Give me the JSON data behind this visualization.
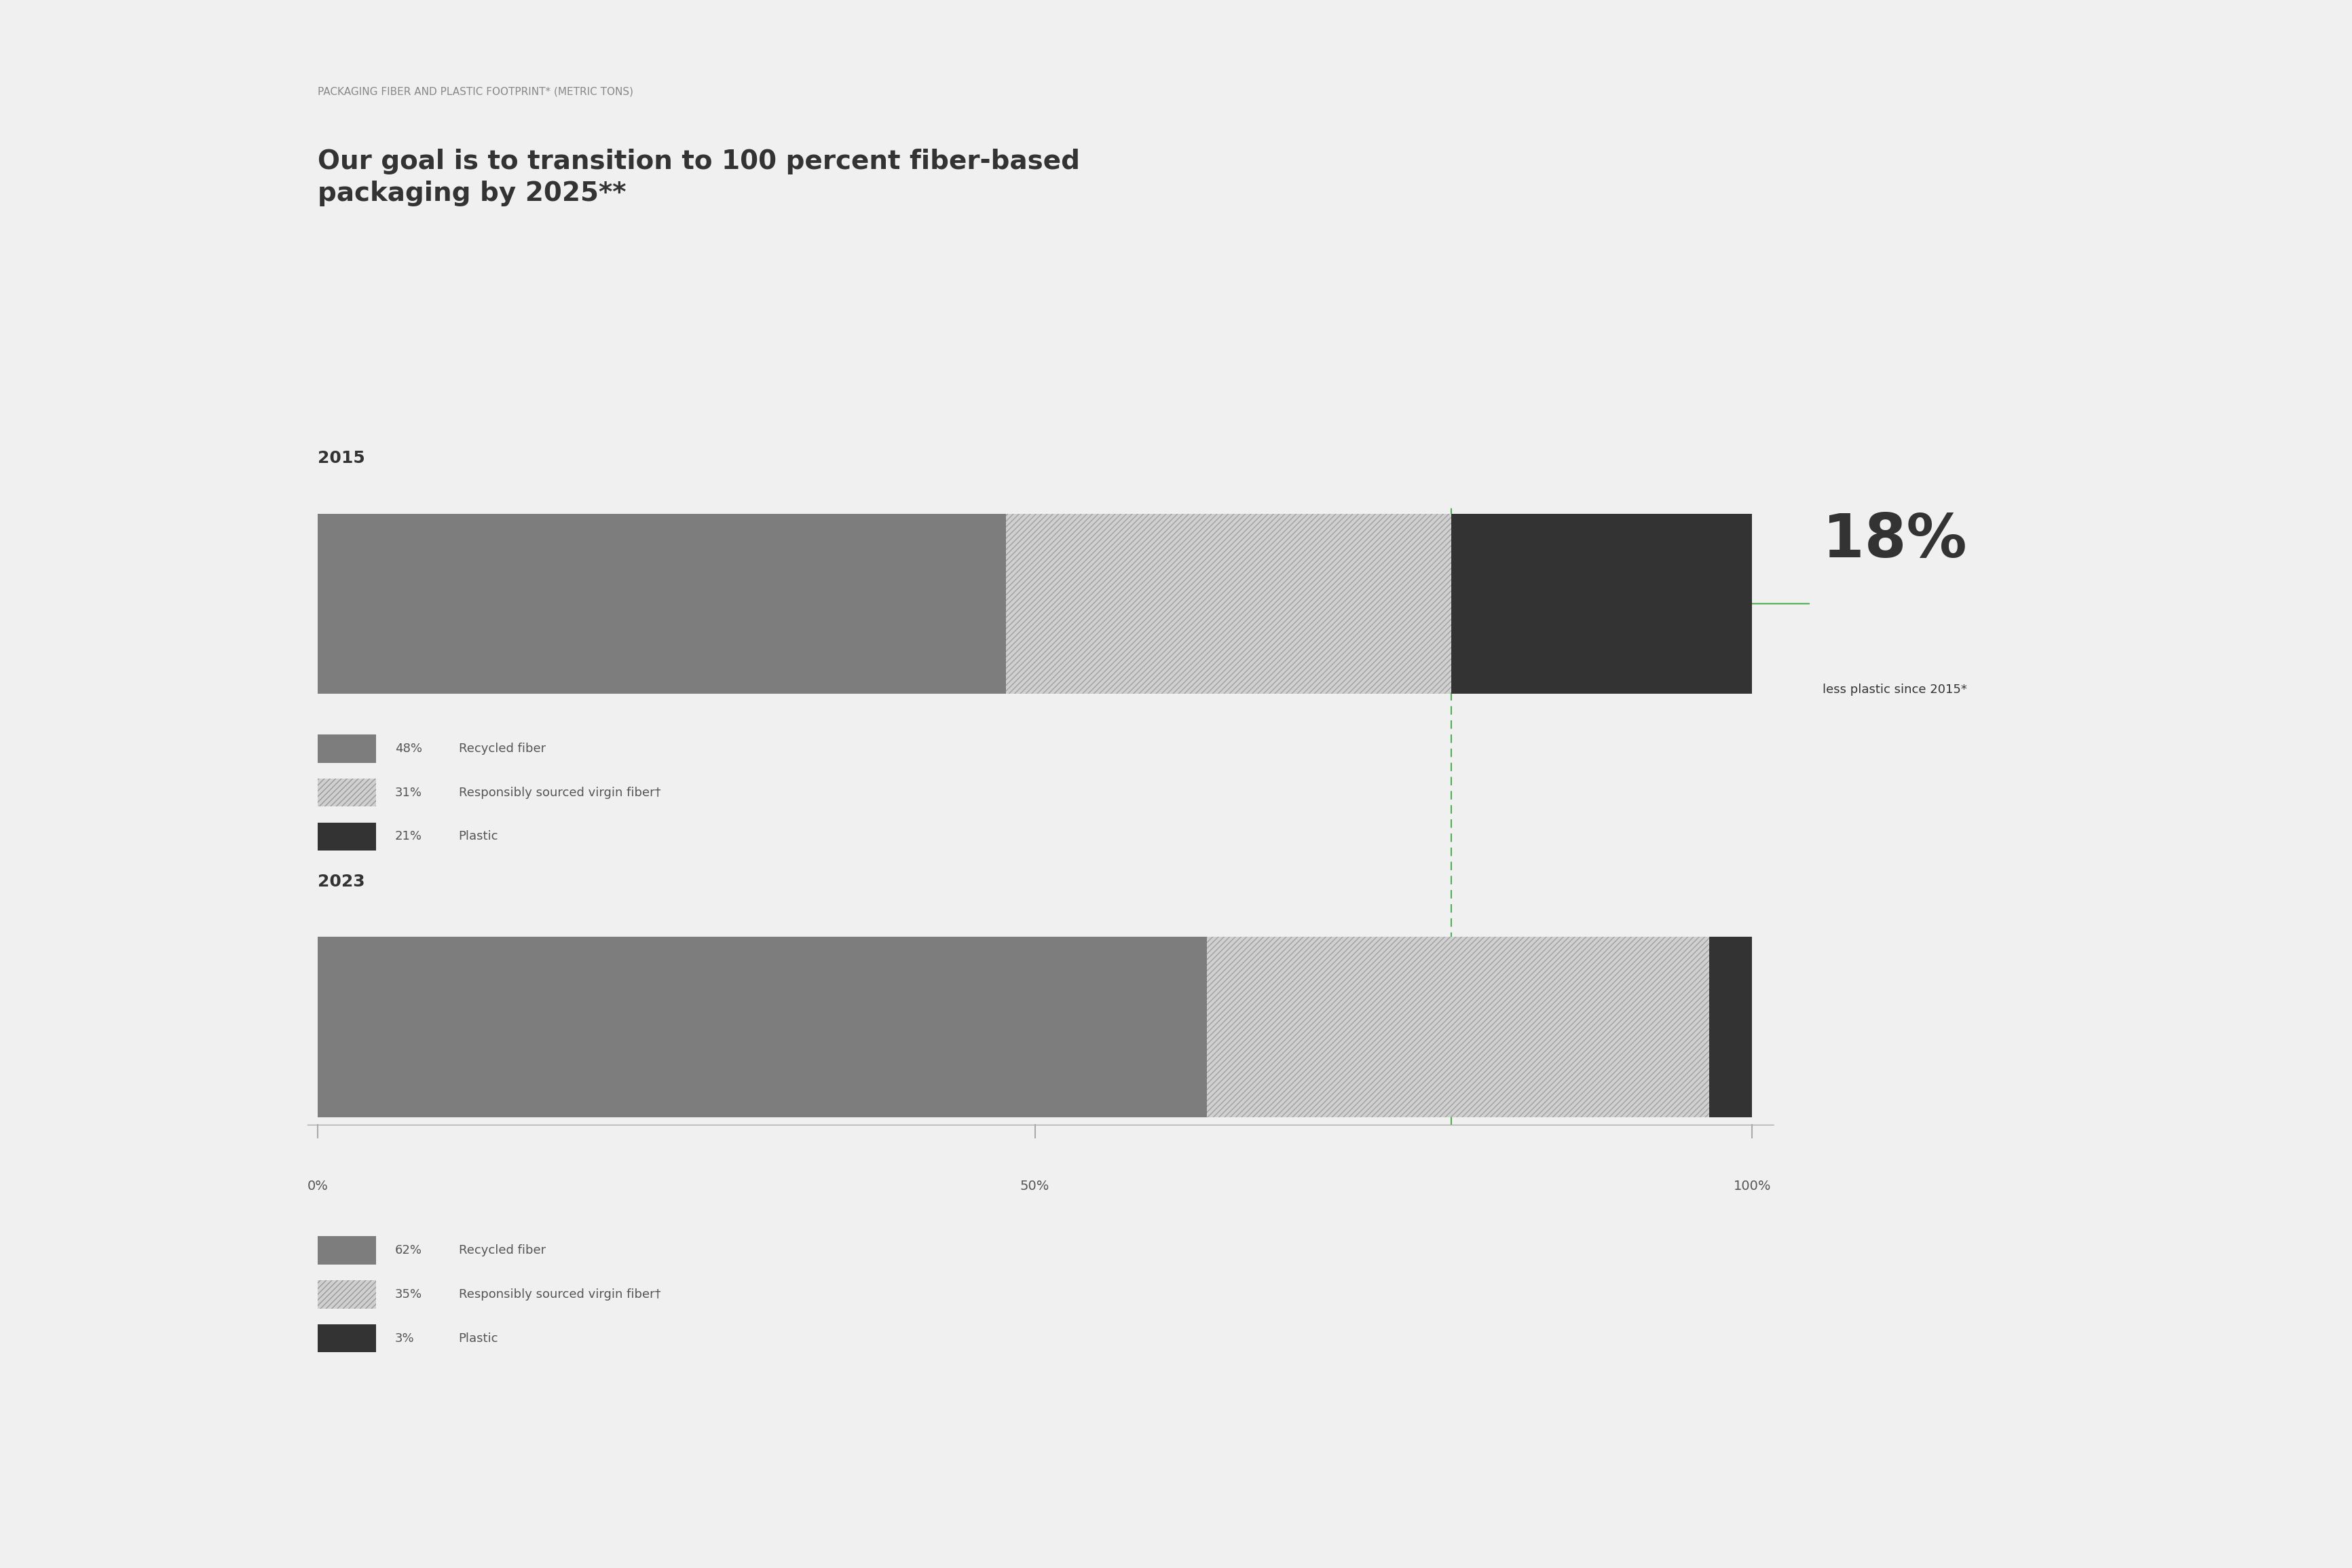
{
  "background_color": "#f0f0f0",
  "supertitle": "PACKAGING FIBER AND PLASTIC FOOTPRINT* (METRIC TONS)",
  "title_line1": "Our goal is to transition to 100 percent fiber-based",
  "title_line2": "packaging by 2025**",
  "year1": "2015",
  "year2": "2023",
  "bar1_recycled": 48,
  "bar1_virgin": 31,
  "bar1_plastic": 21,
  "bar2_recycled": 62,
  "bar2_virgin": 35,
  "bar2_plastic": 3,
  "color_recycled": "#7d7d7d",
  "color_virgin_bg": "#c8c8c8",
  "color_virgin_hatch": "#c8c8c8",
  "color_plastic": "#333333",
  "hatch_pattern": "////",
  "annotation_pct": "18%",
  "annotation_text": "less plastic since 2015*",
  "annotation_color": "#333333",
  "dashed_line_color": "#4caf50",
  "xlim": [
    0,
    130
  ],
  "bar_max": 100,
  "xtick_labels": [
    "0%",
    "50%",
    "100%"
  ],
  "xtick_positions": [
    0,
    50,
    100
  ],
  "legend1_pct1": "48%",
  "legend1_label1": "Recycled fiber",
  "legend1_pct2": "31%",
  "legend1_label2": "Responsibly sourced virgin fiber†",
  "legend1_pct3": "21%",
  "legend1_label3": "Plastic",
  "legend2_pct1": "62%",
  "legend2_label1": "Recycled fiber",
  "legend2_pct2": "35%",
  "legend2_label2": "Responsibly sourced virgin fiber†",
  "legend2_pct3": "3%",
  "legend2_label3": "Plastic",
  "supertitle_color": "#888888",
  "supertitle_fontsize": 11,
  "title_fontsize": 28,
  "year_fontsize": 18,
  "legend_fontsize": 13,
  "annot_pct_fontsize": 64,
  "annot_text_fontsize": 13
}
